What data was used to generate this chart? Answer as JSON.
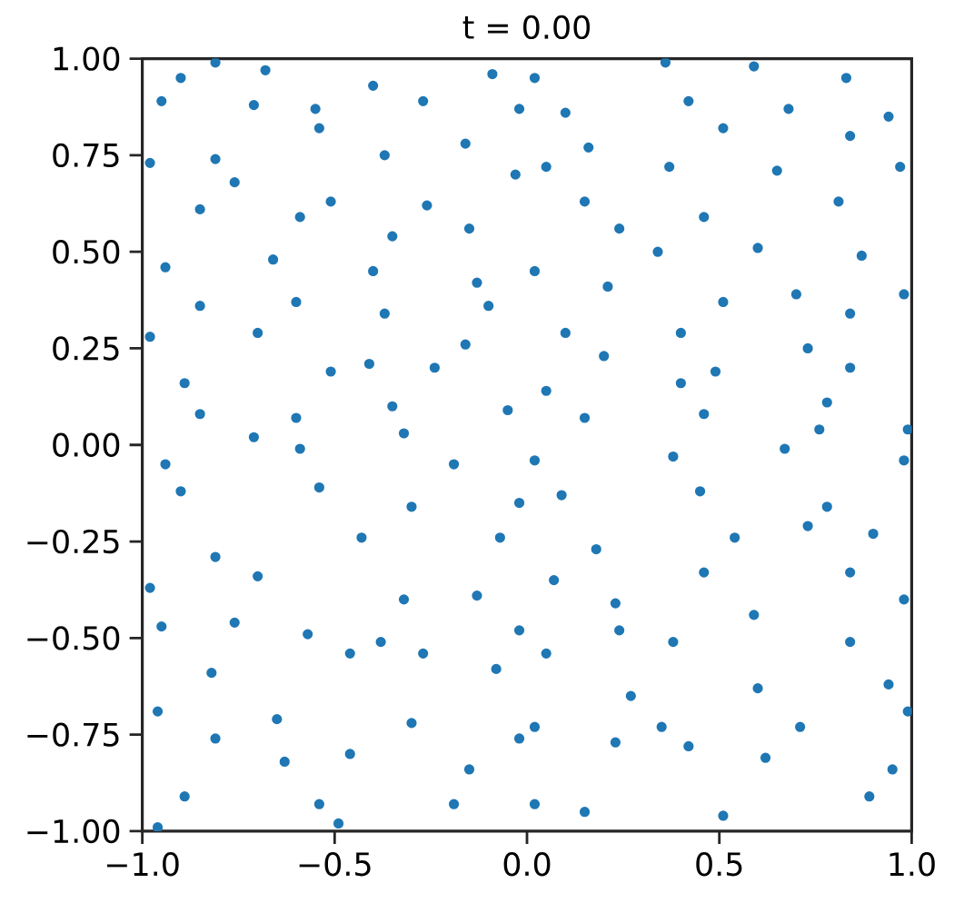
{
  "chart_data": {
    "type": "scatter",
    "title": "t = 0.00",
    "color": "#1f77b4",
    "marker": "circle",
    "x": [
      -0.81,
      -0.68,
      -0.9,
      -0.95,
      -0.71,
      -0.55,
      -0.4,
      -0.27,
      -0.09,
      -0.02,
      -0.81,
      -0.54,
      -0.37,
      -0.16,
      -0.98,
      -0.76,
      -0.51,
      -0.26,
      -0.03,
      -0.85,
      -0.59,
      -0.35,
      -0.15,
      -0.94,
      -0.66,
      -0.4,
      -0.13,
      -0.85,
      -0.6,
      -0.37,
      -0.1,
      -0.98,
      -0.7,
      -0.41,
      -0.16,
      -0.89,
      -0.51,
      -0.24,
      -0.85,
      -0.6,
      -0.35,
      -0.05,
      -0.71,
      -0.32,
      0.02,
      0.36,
      0.59,
      0.83,
      0.1,
      0.42,
      0.68,
      0.94,
      0.16,
      0.51,
      0.84,
      0.05,
      0.37,
      0.65,
      0.97,
      0.15,
      0.46,
      0.81,
      0.24,
      0.6,
      0.87,
      0.02,
      0.34,
      0.7,
      0.98,
      0.21,
      0.51,
      0.84,
      0.1,
      0.4,
      0.73,
      0.2,
      0.49,
      0.84,
      0.05,
      0.4,
      0.78,
      0.15,
      0.46,
      0.76,
      0.99,
      -0.94,
      -0.59,
      -0.19,
      -0.9,
      -0.54,
      -0.3,
      -0.02,
      -0.81,
      -0.43,
      -0.07,
      -0.98,
      -0.7,
      -0.32,
      -0.13,
      -0.76,
      -0.38,
      -0.02,
      -0.82,
      -0.46,
      -0.08,
      -0.96,
      -0.65,
      -0.3,
      -0.02,
      -0.81,
      -0.46,
      -0.15,
      -0.89,
      -0.54,
      -0.19,
      -0.96,
      -0.49,
      -0.63,
      -0.95,
      -0.57,
      -0.27,
      0.02,
      0.38,
      0.67,
      0.98,
      0.09,
      0.45,
      0.78,
      0.18,
      0.54,
      0.9,
      0.07,
      0.46,
      0.84,
      0.23,
      0.59,
      0.98,
      0.05,
      0.38,
      0.84,
      0.27,
      0.6,
      0.94,
      0.02,
      0.35,
      0.71,
      0.99,
      0.23,
      0.62,
      0.95,
      0.15,
      0.51,
      0.89,
      0.02,
      0.42,
      0.24,
      0.73
    ],
    "values": [
      0.99,
      0.97,
      0.95,
      0.89,
      0.88,
      0.87,
      0.93,
      0.89,
      0.96,
      0.87,
      0.74,
      0.82,
      0.75,
      0.78,
      0.73,
      0.68,
      0.63,
      0.62,
      0.7,
      0.61,
      0.59,
      0.54,
      0.56,
      0.46,
      0.48,
      0.45,
      0.42,
      0.36,
      0.37,
      0.34,
      0.36,
      0.28,
      0.29,
      0.21,
      0.26,
      0.16,
      0.19,
      0.2,
      0.08,
      0.07,
      0.1,
      0.09,
      0.02,
      0.03,
      0.95,
      0.99,
      0.98,
      0.95,
      0.86,
      0.89,
      0.87,
      0.85,
      0.77,
      0.82,
      0.8,
      0.72,
      0.72,
      0.71,
      0.72,
      0.63,
      0.59,
      0.63,
      0.56,
      0.51,
      0.49,
      0.45,
      0.5,
      0.39,
      0.39,
      0.41,
      0.37,
      0.34,
      0.29,
      0.29,
      0.25,
      0.23,
      0.19,
      0.2,
      0.14,
      0.16,
      0.11,
      0.07,
      0.08,
      0.04,
      0.04,
      -0.05,
      -0.01,
      -0.05,
      -0.12,
      -0.11,
      -0.16,
      -0.15,
      -0.29,
      -0.24,
      -0.24,
      -0.37,
      -0.34,
      -0.4,
      -0.39,
      -0.46,
      -0.51,
      -0.48,
      -0.59,
      -0.54,
      -0.58,
      -0.69,
      -0.71,
      -0.72,
      -0.76,
      -0.76,
      -0.8,
      -0.84,
      -0.91,
      -0.93,
      -0.93,
      -0.99,
      -0.98,
      -0.82,
      -0.47,
      -0.49,
      -0.54,
      -0.04,
      -0.03,
      -0.01,
      -0.04,
      -0.13,
      -0.12,
      -0.16,
      -0.27,
      -0.24,
      -0.23,
      -0.35,
      -0.33,
      -0.33,
      -0.41,
      -0.44,
      -0.4,
      -0.54,
      -0.51,
      -0.51,
      -0.65,
      -0.63,
      -0.62,
      -0.73,
      -0.73,
      -0.73,
      -0.69,
      -0.77,
      -0.81,
      -0.84,
      -0.95,
      -0.96,
      -0.91,
      -0.93,
      -0.78,
      -0.48,
      -0.21
    ],
    "xlim": [
      -1,
      1
    ],
    "ylim": [
      -1,
      1
    ],
    "xticks": [
      {
        "value": -1,
        "label": "−1.0"
      },
      {
        "value": -0.5,
        "label": "−0.5"
      },
      {
        "value": 0,
        "label": "0.0"
      },
      {
        "value": 0.5,
        "label": "0.5"
      },
      {
        "value": 1,
        "label": "1.0"
      }
    ],
    "yticks": [
      {
        "value": -1,
        "label": "−1.00"
      },
      {
        "value": -0.75,
        "label": "−0.75"
      },
      {
        "value": -0.5,
        "label": "−0.50"
      },
      {
        "value": -0.25,
        "label": "−0.25"
      },
      {
        "value": 0,
        "label": "0.00"
      },
      {
        "value": 0.25,
        "label": "0.25"
      },
      {
        "value": 0.5,
        "label": "0.50"
      },
      {
        "value": 0.75,
        "label": "0.75"
      },
      {
        "value": 1,
        "label": "1.00"
      }
    ]
  }
}
